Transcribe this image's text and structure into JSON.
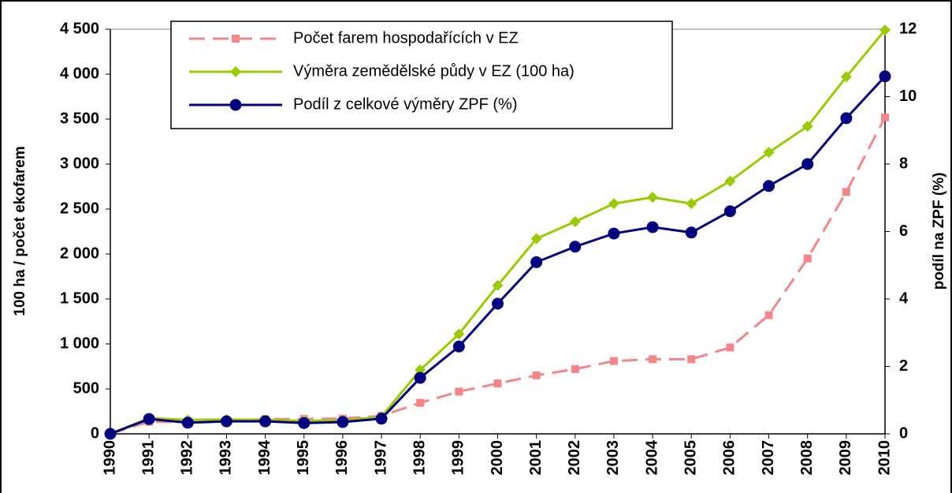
{
  "chart_data": {
    "type": "line",
    "categories": [
      "1990",
      "1991",
      "1992",
      "1993",
      "1994",
      "1995",
      "1996",
      "1997",
      "1998",
      "1999",
      "2000",
      "2001",
      "2002",
      "2003",
      "2004",
      "2005",
      "2006",
      "2007",
      "2008",
      "2009",
      "2010"
    ],
    "ylabel": "100 ha / počet ekofarem",
    "y2label": "podíl na ZPF (%)",
    "ylim": [
      0,
      4500
    ],
    "yticks": [
      0,
      500,
      {
        "value": 1000,
        "label": "1 000"
      },
      {
        "value": 1500,
        "label": "1 500"
      },
      {
        "value": 2000,
        "label": "2 000"
      },
      {
        "value": 2500,
        "label": "2 500"
      },
      {
        "value": 3000,
        "label": "3 000"
      },
      {
        "value": 3500,
        "label": "3 500"
      },
      {
        "value": 4000,
        "label": "4 000"
      },
      {
        "value": 4500,
        "label": "4 500"
      }
    ],
    "y2lim": [
      0,
      12
    ],
    "y2ticks": [
      0,
      2,
      4,
      6,
      8,
      10,
      12
    ],
    "series": [
      {
        "name": "Počet farem hospodařících v EZ",
        "color": "#f4868a",
        "marker": "square",
        "dashed": true,
        "values": [
          3,
          135,
          130,
          140,
          165,
          165,
          170,
          200,
          345,
          470,
          560,
          650,
          720,
          810,
          830,
          830,
          960,
          1320,
          1950,
          2690,
          3520
        ]
      },
      {
        "name": "Výměra zemědělské půdy v EZ (100 ha)",
        "color": "#99cc00",
        "marker": "diamond",
        "dashed": false,
        "values": [
          0,
          175,
          155,
          160,
          155,
          145,
          150,
          190,
          710,
          1110,
          1650,
          2170,
          2360,
          2560,
          2630,
          2560,
          2810,
          3130,
          3420,
          3970,
          4490
        ]
      },
      {
        "name": "Podíl z celkové výměry ZPF (%)",
        "color": "#000080",
        "marker": "circle",
        "dashed": false,
        "axis": "y2",
        "values": [
          0,
          0.44,
          0.33,
          0.37,
          0.37,
          0.32,
          0.35,
          0.45,
          1.66,
          2.59,
          3.86,
          5.09,
          5.55,
          5.94,
          6.13,
          5.97,
          6.6,
          7.35,
          8.0,
          9.36,
          10.6
        ]
      }
    ]
  }
}
